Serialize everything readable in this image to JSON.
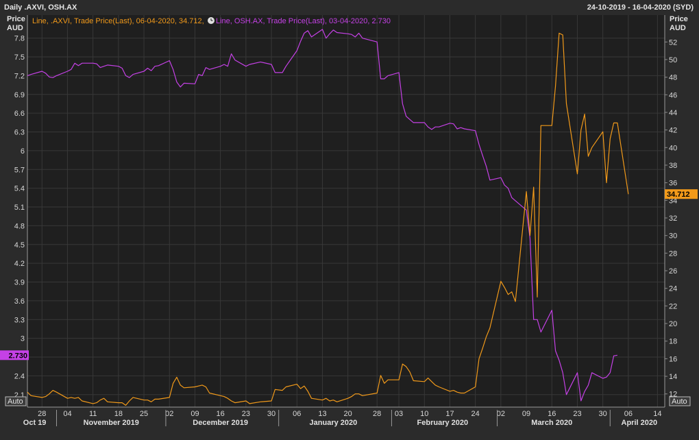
{
  "header": {
    "title": "Daily .AXVI, OSH.AX",
    "date_range": "24-10-2019 - 16-04-2020 (SYD)"
  },
  "left_axis": {
    "title_line1": "Price",
    "title_line2": "AUD"
  },
  "right_axis": {
    "title_line1": "Price",
    "title_line2": "AUD"
  },
  "legend": {
    "axvi": "Line, .AXVI, Trade Price(Last), 06-04-2020, 34.712,",
    "osh": "Line, OSH.AX, Trade Price(Last), 03-04-2020, 2.730"
  },
  "auto_left": "Auto",
  "auto_right": "Auto",
  "colors": {
    "axvi": "#f29a1a",
    "osh": "#c541e6",
    "background": "#1e1e1e",
    "grid": "#3a3a3a"
  },
  "chart_data": {
    "type": "line",
    "x_start": "2019-10-24",
    "x_end": "2020-04-16",
    "left_ylim": [
      1.9,
      7.95
    ],
    "right_ylim": [
      10.5,
      53.5
    ],
    "left_ticks": [
      "7.8",
      "7.5",
      "7.2",
      "6.9",
      "6.6",
      "6.3",
      "6",
      "5.7",
      "5.4",
      "5.1",
      "4.8",
      "4.5",
      "4.2",
      "3.9",
      "3.6",
      "3.3",
      "3",
      "2.7",
      "2.4",
      "2.1"
    ],
    "right_ticks": [
      "52",
      "50",
      "48",
      "46",
      "44",
      "42",
      "40",
      "38",
      "36",
      "34",
      "32",
      "30",
      "28",
      "26",
      "24",
      "22",
      "20",
      "18",
      "16",
      "14",
      "12"
    ],
    "x_ticks": [
      {
        "date": "2019-10-28",
        "label": "28"
      },
      {
        "date": "2019-11-04",
        "label": "04"
      },
      {
        "date": "2019-11-11",
        "label": "11"
      },
      {
        "date": "2019-11-18",
        "label": "18"
      },
      {
        "date": "2019-11-25",
        "label": "25"
      },
      {
        "date": "2019-12-02",
        "label": "02"
      },
      {
        "date": "2019-12-09",
        "label": "09"
      },
      {
        "date": "2019-12-16",
        "label": "16"
      },
      {
        "date": "2019-12-23",
        "label": "23"
      },
      {
        "date": "2019-12-30",
        "label": "30"
      },
      {
        "date": "2020-01-06",
        "label": "06"
      },
      {
        "date": "2020-01-13",
        "label": "13"
      },
      {
        "date": "2020-01-20",
        "label": "20"
      },
      {
        "date": "2020-01-28",
        "label": "28"
      },
      {
        "date": "2020-02-03",
        "label": "03"
      },
      {
        "date": "2020-02-10",
        "label": "10"
      },
      {
        "date": "2020-02-17",
        "label": "17"
      },
      {
        "date": "2020-02-24",
        "label": "24"
      },
      {
        "date": "2020-03-02",
        "label": "02"
      },
      {
        "date": "2020-03-09",
        "label": "09"
      },
      {
        "date": "2020-03-16",
        "label": "16"
      },
      {
        "date": "2020-03-23",
        "label": "23"
      },
      {
        "date": "2020-03-30",
        "label": "30"
      },
      {
        "date": "2020-04-06",
        "label": "06"
      },
      {
        "date": "2020-04-14",
        "label": "14"
      }
    ],
    "month_labels": [
      {
        "date": "2019-10-26",
        "label": "Oct 19"
      },
      {
        "date": "2019-11-16",
        "label": "November 2019"
      },
      {
        "date": "2019-12-16",
        "label": "December 2019"
      },
      {
        "date": "2020-01-16",
        "label": "January 2020"
      },
      {
        "date": "2020-02-15",
        "label": "February 2020"
      },
      {
        "date": "2020-03-16",
        "label": "March 2020"
      },
      {
        "date": "2020-04-09",
        "label": "April 2020"
      }
    ],
    "month_dividers": [
      "2019-11-01",
      "2019-12-01",
      "2020-01-01",
      "2020-02-01",
      "2020-03-01",
      "2020-04-01"
    ],
    "series": [
      {
        "name": "OSH.AX",
        "axis": "left",
        "last_label": "2.730",
        "points": [
          [
            "2019-10-24",
            7.2
          ],
          [
            "2019-10-25",
            7.22
          ],
          [
            "2019-10-28",
            7.27
          ],
          [
            "2019-10-29",
            7.24
          ],
          [
            "2019-10-30",
            7.18
          ],
          [
            "2019-10-31",
            7.17
          ],
          [
            "2019-11-01",
            7.2
          ],
          [
            "2019-11-04",
            7.27
          ],
          [
            "2019-11-05",
            7.3
          ],
          [
            "2019-11-06",
            7.4
          ],
          [
            "2019-11-07",
            7.36
          ],
          [
            "2019-11-08",
            7.4
          ],
          [
            "2019-11-11",
            7.4
          ],
          [
            "2019-11-12",
            7.39
          ],
          [
            "2019-11-13",
            7.33
          ],
          [
            "2019-11-14",
            7.35
          ],
          [
            "2019-11-15",
            7.37
          ],
          [
            "2019-11-18",
            7.35
          ],
          [
            "2019-11-19",
            7.32
          ],
          [
            "2019-11-20",
            7.2
          ],
          [
            "2019-11-21",
            7.17
          ],
          [
            "2019-11-22",
            7.22
          ],
          [
            "2019-11-25",
            7.27
          ],
          [
            "2019-11-26",
            7.32
          ],
          [
            "2019-11-27",
            7.28
          ],
          [
            "2019-11-28",
            7.35
          ],
          [
            "2019-11-29",
            7.36
          ],
          [
            "2019-12-02",
            7.44
          ],
          [
            "2019-12-03",
            7.3
          ],
          [
            "2019-12-04",
            7.1
          ],
          [
            "2019-12-05",
            7.02
          ],
          [
            "2019-12-06",
            7.08
          ],
          [
            "2019-12-09",
            7.07
          ],
          [
            "2019-12-10",
            7.22
          ],
          [
            "2019-12-11",
            7.2
          ],
          [
            "2019-12-12",
            7.33
          ],
          [
            "2019-12-13",
            7.3
          ],
          [
            "2019-12-16",
            7.35
          ],
          [
            "2019-12-17",
            7.38
          ],
          [
            "2019-12-18",
            7.35
          ],
          [
            "2019-12-19",
            7.55
          ],
          [
            "2019-12-20",
            7.45
          ],
          [
            "2019-12-23",
            7.35
          ],
          [
            "2019-12-24",
            7.38
          ],
          [
            "2019-12-27",
            7.42
          ],
          [
            "2019-12-30",
            7.38
          ],
          [
            "2019-12-31",
            7.25
          ],
          [
            "2020-01-02",
            7.25
          ],
          [
            "2020-01-03",
            7.35
          ],
          [
            "2020-01-06",
            7.6
          ],
          [
            "2020-01-07",
            7.75
          ],
          [
            "2020-01-08",
            7.88
          ],
          [
            "2020-01-09",
            7.92
          ],
          [
            "2020-01-10",
            7.82
          ],
          [
            "2020-01-13",
            7.94
          ],
          [
            "2020-01-14",
            7.8
          ],
          [
            "2020-01-15",
            7.87
          ],
          [
            "2020-01-16",
            7.93
          ],
          [
            "2020-01-17",
            7.89
          ],
          [
            "2020-01-20",
            7.87
          ],
          [
            "2020-01-21",
            7.86
          ],
          [
            "2020-01-22",
            7.82
          ],
          [
            "2020-01-23",
            7.88
          ],
          [
            "2020-01-24",
            7.8
          ],
          [
            "2020-01-28",
            7.74
          ],
          [
            "2020-01-29",
            7.15
          ],
          [
            "2020-01-30",
            7.15
          ],
          [
            "2020-01-31",
            7.2
          ],
          [
            "2020-02-03",
            7.25
          ],
          [
            "2020-02-04",
            6.75
          ],
          [
            "2020-02-05",
            6.55
          ],
          [
            "2020-02-06",
            6.5
          ],
          [
            "2020-02-07",
            6.45
          ],
          [
            "2020-02-10",
            6.45
          ],
          [
            "2020-02-11",
            6.38
          ],
          [
            "2020-02-12",
            6.34
          ],
          [
            "2020-02-13",
            6.38
          ],
          [
            "2020-02-14",
            6.38
          ],
          [
            "2020-02-17",
            6.44
          ],
          [
            "2020-02-18",
            6.43
          ],
          [
            "2020-02-19",
            6.35
          ],
          [
            "2020-02-20",
            6.37
          ],
          [
            "2020-02-21",
            6.35
          ],
          [
            "2020-02-24",
            6.32
          ],
          [
            "2020-02-25",
            6.1
          ],
          [
            "2020-02-26",
            5.92
          ],
          [
            "2020-02-27",
            5.75
          ],
          [
            "2020-02-28",
            5.53
          ],
          [
            "2020-03-02",
            5.57
          ],
          [
            "2020-03-03",
            5.45
          ],
          [
            "2020-03-04",
            5.4
          ],
          [
            "2020-03-05",
            5.25
          ],
          [
            "2020-03-06",
            5.2
          ],
          [
            "2020-03-09",
            5.05
          ],
          [
            "2020-03-10",
            4.6
          ],
          [
            "2020-03-11",
            3.3
          ],
          [
            "2020-03-12",
            3.3
          ],
          [
            "2020-03-13",
            3.1
          ],
          [
            "2020-03-16",
            3.45
          ],
          [
            "2020-03-17",
            2.8
          ],
          [
            "2020-03-18",
            2.65
          ],
          [
            "2020-03-19",
            2.45
          ],
          [
            "2020-03-20",
            2.1
          ],
          [
            "2020-03-23",
            2.45
          ],
          [
            "2020-03-24",
            2.0
          ],
          [
            "2020-03-25",
            2.15
          ],
          [
            "2020-03-26",
            2.25
          ],
          [
            "2020-03-27",
            2.45
          ],
          [
            "2020-03-30",
            2.36
          ],
          [
            "2020-03-31",
            2.38
          ],
          [
            "2020-04-01",
            2.45
          ],
          [
            "2020-04-02",
            2.72
          ],
          [
            "2020-04-03",
            2.73
          ]
        ]
      },
      {
        "name": ".AXVI",
        "axis": "right",
        "last_label": "34.712",
        "points": [
          [
            "2019-10-24",
            12.2
          ],
          [
            "2019-10-25",
            11.8
          ],
          [
            "2019-10-28",
            11.6
          ],
          [
            "2019-10-29",
            11.7
          ],
          [
            "2019-10-30",
            12.0
          ],
          [
            "2019-10-31",
            12.4
          ],
          [
            "2019-11-01",
            12.2
          ],
          [
            "2019-11-04",
            11.5
          ],
          [
            "2019-11-05",
            11.6
          ],
          [
            "2019-11-06",
            11.5
          ],
          [
            "2019-11-07",
            11.6
          ],
          [
            "2019-11-08",
            11.2
          ],
          [
            "2019-11-11",
            10.9
          ],
          [
            "2019-11-12",
            11.0
          ],
          [
            "2019-11-13",
            11.3
          ],
          [
            "2019-11-14",
            11.5
          ],
          [
            "2019-11-15",
            11.1
          ],
          [
            "2019-11-18",
            11.0
          ],
          [
            "2019-11-19",
            11.0
          ],
          [
            "2019-11-20",
            10.7
          ],
          [
            "2019-11-21",
            11.2
          ],
          [
            "2019-11-22",
            11.6
          ],
          [
            "2019-11-25",
            11.3
          ],
          [
            "2019-11-26",
            11.3
          ],
          [
            "2019-11-27",
            11.1
          ],
          [
            "2019-11-28",
            11.4
          ],
          [
            "2019-11-29",
            11.4
          ],
          [
            "2019-12-02",
            11.6
          ],
          [
            "2019-12-03",
            13.2
          ],
          [
            "2019-12-04",
            13.9
          ],
          [
            "2019-12-05",
            13.0
          ],
          [
            "2019-12-06",
            12.7
          ],
          [
            "2019-12-09",
            12.8
          ],
          [
            "2019-12-10",
            12.9
          ],
          [
            "2019-12-11",
            13.0
          ],
          [
            "2019-12-12",
            12.8
          ],
          [
            "2019-12-13",
            12.1
          ],
          [
            "2019-12-16",
            11.8
          ],
          [
            "2019-12-17",
            11.7
          ],
          [
            "2019-12-18",
            11.5
          ],
          [
            "2019-12-19",
            11.2
          ],
          [
            "2019-12-20",
            11.0
          ],
          [
            "2019-12-23",
            11.2
          ],
          [
            "2019-12-24",
            10.9
          ],
          [
            "2019-12-27",
            11.1
          ],
          [
            "2019-12-30",
            11.2
          ],
          [
            "2019-12-31",
            12.5
          ],
          [
            "2020-01-02",
            12.4
          ],
          [
            "2020-01-03",
            12.8
          ],
          [
            "2020-01-06",
            13.1
          ],
          [
            "2020-01-07",
            12.6
          ],
          [
            "2020-01-08",
            12.9
          ],
          [
            "2020-01-09",
            12.3
          ],
          [
            "2020-01-10",
            11.5
          ],
          [
            "2020-01-13",
            11.3
          ],
          [
            "2020-01-14",
            11.5
          ],
          [
            "2020-01-15",
            11.2
          ],
          [
            "2020-01-16",
            11.3
          ],
          [
            "2020-01-17",
            11.1
          ],
          [
            "2020-01-20",
            11.5
          ],
          [
            "2020-01-21",
            11.7
          ],
          [
            "2020-01-22",
            12.0
          ],
          [
            "2020-01-23",
            12.0
          ],
          [
            "2020-01-24",
            11.8
          ],
          [
            "2020-01-28",
            12.1
          ],
          [
            "2020-01-29",
            14.1
          ],
          [
            "2020-01-30",
            13.2
          ],
          [
            "2020-01-31",
            13.6
          ],
          [
            "2020-02-03",
            13.6
          ],
          [
            "2020-02-04",
            15.4
          ],
          [
            "2020-02-05",
            15.1
          ],
          [
            "2020-02-06",
            14.5
          ],
          [
            "2020-02-07",
            13.5
          ],
          [
            "2020-02-10",
            13.4
          ],
          [
            "2020-02-11",
            13.8
          ],
          [
            "2020-02-12",
            13.4
          ],
          [
            "2020-02-13",
            13.0
          ],
          [
            "2020-02-14",
            12.8
          ],
          [
            "2020-02-17",
            12.3
          ],
          [
            "2020-02-18",
            12.4
          ],
          [
            "2020-02-19",
            12.2
          ],
          [
            "2020-02-20",
            12.1
          ],
          [
            "2020-02-21",
            12.1
          ],
          [
            "2020-02-24",
            12.8
          ],
          [
            "2020-02-25",
            16.0
          ],
          [
            "2020-02-26",
            17.2
          ],
          [
            "2020-02-27",
            18.5
          ],
          [
            "2020-02-28",
            19.5
          ],
          [
            "2020-03-02",
            24.8
          ],
          [
            "2020-03-03",
            24.1
          ],
          [
            "2020-03-04",
            23.3
          ],
          [
            "2020-03-05",
            23.6
          ],
          [
            "2020-03-06",
            22.5
          ],
          [
            "2020-03-09",
            35.0
          ],
          [
            "2020-03-10",
            30.0
          ],
          [
            "2020-03-11",
            35.5
          ],
          [
            "2020-03-12",
            23.0
          ],
          [
            "2020-03-13",
            42.5
          ],
          [
            "2020-03-16",
            42.5
          ],
          [
            "2020-03-17",
            47.0
          ],
          [
            "2020-03-18",
            53.0
          ],
          [
            "2020-03-19",
            52.8
          ],
          [
            "2020-03-20",
            45.0
          ],
          [
            "2020-03-23",
            37.0
          ],
          [
            "2020-03-24",
            42.0
          ],
          [
            "2020-03-25",
            43.8
          ],
          [
            "2020-03-26",
            39.0
          ],
          [
            "2020-03-27",
            40.0
          ],
          [
            "2020-03-30",
            41.8
          ],
          [
            "2020-03-31",
            36.0
          ],
          [
            "2020-04-01",
            41.0
          ],
          [
            "2020-04-02",
            42.8
          ],
          [
            "2020-04-03",
            42.8
          ],
          [
            "2020-04-06",
            34.7
          ]
        ]
      }
    ]
  }
}
